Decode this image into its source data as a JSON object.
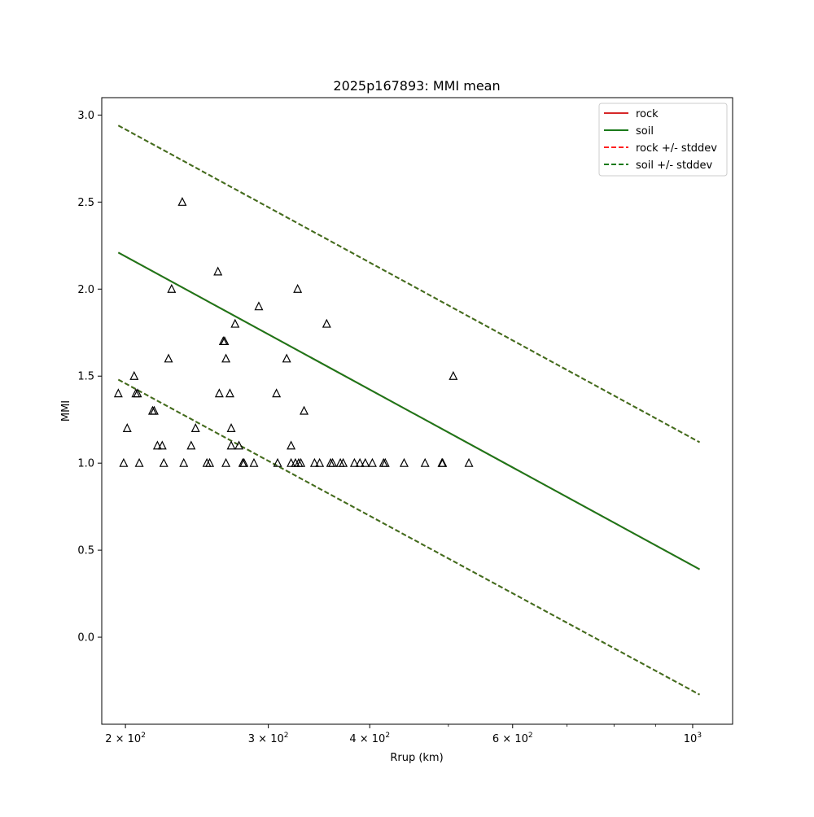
{
  "chart_data": {
    "type": "scatter",
    "title": "2025p167893: MMI mean",
    "xlabel": "Rrup (km)",
    "ylabel": "MMI",
    "xscale": "log",
    "xlim": [
      187,
      1120
    ],
    "ylim": [
      -0.5,
      3.1
    ],
    "grid": false,
    "legend_position": "top-right",
    "x_ticks": [
      {
        "value": 200,
        "label": "2 × 10²"
      },
      {
        "value": 300,
        "label": "3 × 10²"
      },
      {
        "value": 400,
        "label": "4 × 10²"
      },
      {
        "value": 600,
        "label": "6 × 10²"
      },
      {
        "value": 1000,
        "label": "10³"
      }
    ],
    "x_minor_ticks": [
      500,
      700,
      800,
      900
    ],
    "y_ticks": [
      {
        "value": 0.0,
        "label": "0.0"
      },
      {
        "value": 0.5,
        "label": "0.5"
      },
      {
        "value": 1.0,
        "label": "1.0"
      },
      {
        "value": 1.5,
        "label": "1.5"
      },
      {
        "value": 2.0,
        "label": "2.0"
      },
      {
        "value": 2.5,
        "label": "2.5"
      },
      {
        "value": 3.0,
        "label": "3.0"
      }
    ],
    "series": [
      {
        "name": "rock",
        "kind": "line",
        "style": "solid",
        "color": "#d62728",
        "x": [
          196,
          1020
        ],
        "y": [
          2.21,
          0.39
        ]
      },
      {
        "name": "soil",
        "kind": "line",
        "style": "solid",
        "color": "#1a7a1a",
        "x": [
          196,
          1020
        ],
        "y": [
          2.21,
          0.39
        ]
      },
      {
        "name": "rock +/- stddev",
        "kind": "line",
        "style": "dashed",
        "color": "#ff2020",
        "bands": [
          {
            "x": [
              196,
              1020
            ],
            "y": [
              2.94,
              1.12
            ]
          },
          {
            "x": [
              196,
              1020
            ],
            "y": [
              1.48,
              -0.33
            ]
          }
        ]
      },
      {
        "name": "soil +/- stddev",
        "kind": "line",
        "style": "dashed",
        "color": "#1a7a1a",
        "bands": [
          {
            "x": [
              196,
              1020
            ],
            "y": [
              2.94,
              1.12
            ]
          },
          {
            "x": [
              196,
              1020
            ],
            "y": [
              1.48,
              -0.33
            ]
          }
        ]
      }
    ],
    "stations": {
      "marker": "triangle-open",
      "color": "#000000",
      "points": [
        [
          196,
          1.4
        ],
        [
          201,
          1.2
        ],
        [
          199,
          1.0
        ],
        [
          205,
          1.5
        ],
        [
          206,
          1.4
        ],
        [
          207,
          1.4
        ],
        [
          208,
          1.0
        ],
        [
          216,
          1.3
        ],
        [
          217,
          1.3
        ],
        [
          219,
          1.1
        ],
        [
          222,
          1.1
        ],
        [
          223,
          1.0
        ],
        [
          226,
          1.6
        ],
        [
          228,
          2.0
        ],
        [
          235,
          2.5
        ],
        [
          236,
          1.0
        ],
        [
          241,
          1.1
        ],
        [
          244,
          1.2
        ],
        [
          252,
          1.0
        ],
        [
          254,
          1.0
        ],
        [
          260,
          2.1
        ],
        [
          261,
          1.4
        ],
        [
          264,
          1.7
        ],
        [
          265,
          1.7
        ],
        [
          266,
          1.6
        ],
        [
          266,
          1.0
        ],
        [
          269,
          1.4
        ],
        [
          270,
          1.2
        ],
        [
          270,
          1.1
        ],
        [
          273,
          1.8
        ],
        [
          276,
          1.1
        ],
        [
          279,
          1.0
        ],
        [
          280,
          1.0
        ],
        [
          288,
          1.0
        ],
        [
          292,
          1.9
        ],
        [
          307,
          1.4
        ],
        [
          308,
          1.0
        ],
        [
          316,
          1.6
        ],
        [
          320,
          1.1
        ],
        [
          320,
          1.0
        ],
        [
          324,
          1.0
        ],
        [
          326,
          2.0
        ],
        [
          327,
          1.0
        ],
        [
          329,
          1.0
        ],
        [
          332,
          1.3
        ],
        [
          342,
          1.0
        ],
        [
          347,
          1.0
        ],
        [
          354,
          1.8
        ],
        [
          358,
          1.0
        ],
        [
          360,
          1.0
        ],
        [
          368,
          1.0
        ],
        [
          371,
          1.0
        ],
        [
          383,
          1.0
        ],
        [
          389,
          1.0
        ],
        [
          395,
          1.0
        ],
        [
          403,
          1.0
        ],
        [
          416,
          1.0
        ],
        [
          418,
          1.0
        ],
        [
          441,
          1.0
        ],
        [
          468,
          1.0
        ],
        [
          491,
          1.0
        ],
        [
          492,
          1.0
        ],
        [
          507,
          1.5
        ],
        [
          530,
          1.0
        ]
      ]
    }
  }
}
